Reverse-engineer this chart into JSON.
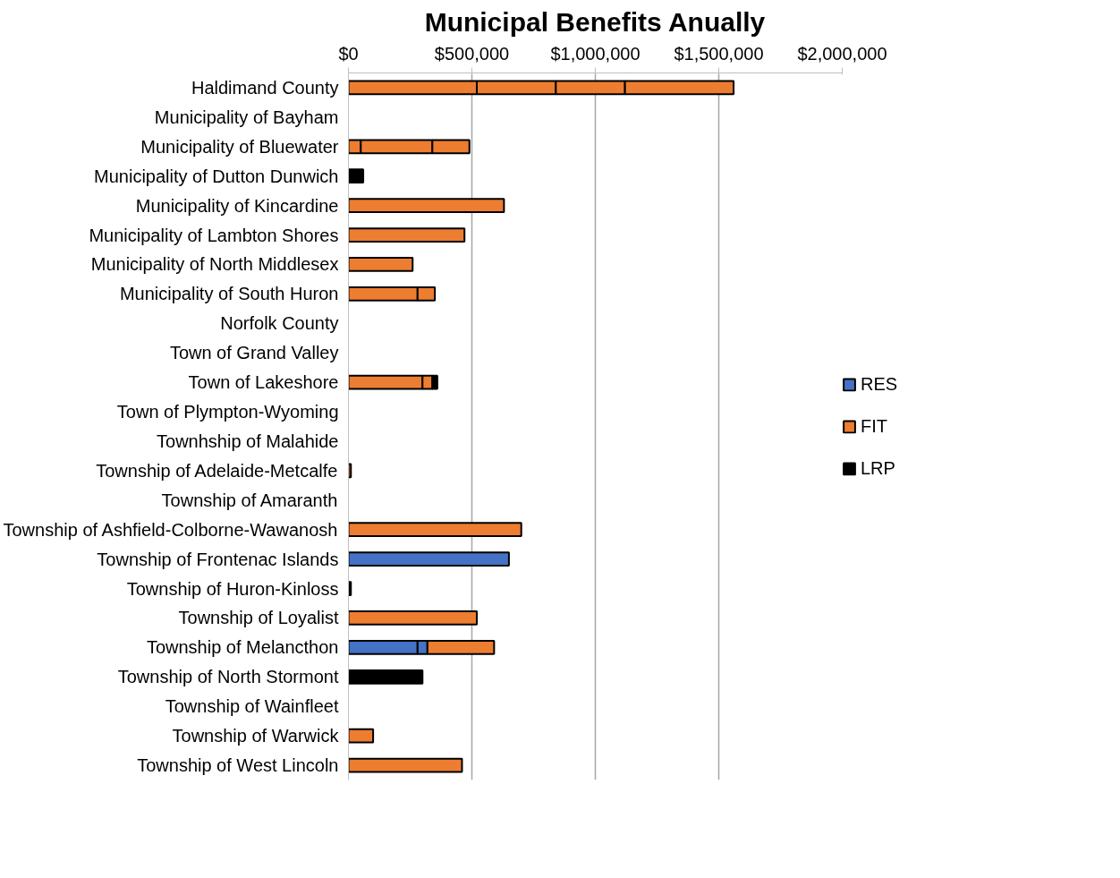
{
  "chart_data": {
    "type": "bar",
    "orientation": "horizontal",
    "stacked": true,
    "title": "Municipal Benefits Anually",
    "categories": [
      "Haldimand County",
      "Municipality of Bayham",
      "Municipality of Bluewater",
      "Municipality of Dutton Dunwich",
      "Municipality of Kincardine",
      "Municipality of Lambton Shores",
      "Municipality of North Middlesex",
      "Municipality of South Huron",
      "Norfolk County",
      "Town of Grand Valley",
      "Town of Lakeshore",
      "Town of Plympton-Wyoming",
      "Townhship of Malahide",
      "Township of Adelaide-Metcalfe",
      "Township of Amaranth",
      "Township of Ashfield-Colborne-Wawanosh",
      "Township of Frontenac Islands",
      "Township of Huron-Kinloss",
      "Township of Loyalist",
      "Township of Melancthon",
      "Township of North Stormont",
      "Township of Wainfleet",
      "Township of Warwick",
      "Township of West Lincoln"
    ],
    "series": [
      {
        "name": "RES",
        "color": "#4472c4",
        "values": [
          null,
          null,
          null,
          null,
          null,
          null,
          null,
          null,
          null,
          null,
          null,
          null,
          null,
          null,
          null,
          null,
          650000,
          null,
          null,
          280000,
          null,
          null,
          null,
          null
        ]
      },
      {
        "color": "#4472c4",
        "values": [
          null,
          null,
          null,
          null,
          null,
          null,
          null,
          null,
          null,
          null,
          null,
          null,
          null,
          null,
          null,
          null,
          null,
          null,
          null,
          40000,
          null,
          null,
          null,
          null
        ]
      },
      {
        "name": "FIT",
        "color": "#ed7d31",
        "values": [
          520000,
          null,
          50000,
          null,
          630000,
          470000,
          260000,
          280000,
          null,
          null,
          300000,
          null,
          null,
          10000,
          null,
          700000,
          null,
          null,
          520000,
          270000,
          null,
          null,
          100000,
          460000
        ]
      },
      {
        "color": "#ed7d31",
        "values": [
          320000,
          null,
          290000,
          null,
          null,
          null,
          null,
          70000,
          null,
          null,
          40000,
          null,
          null,
          null,
          null,
          null,
          null,
          null,
          null,
          null,
          null,
          null,
          null,
          null
        ]
      },
      {
        "color": "#ed7d31",
        "values": [
          280000,
          null,
          150000,
          null,
          null,
          null,
          null,
          null,
          null,
          null,
          null,
          null,
          null,
          null,
          null,
          null,
          null,
          null,
          null,
          null,
          null,
          null,
          null,
          null
        ]
      },
      {
        "color": "#ed7d31",
        "values": [
          440000,
          null,
          null,
          null,
          null,
          null,
          null,
          null,
          null,
          null,
          null,
          null,
          null,
          null,
          null,
          null,
          null,
          null,
          null,
          null,
          null,
          null,
          null,
          null
        ]
      },
      {
        "name": "LRP",
        "color": "#000000",
        "values": [
          null,
          null,
          null,
          60000,
          null,
          null,
          null,
          null,
          null,
          null,
          20000,
          null,
          null,
          null,
          null,
          null,
          null,
          10000,
          null,
          null,
          300000,
          null,
          null,
          null
        ]
      }
    ],
    "xlim": [
      0,
      2000000
    ],
    "xticks": [
      {
        "value": 0,
        "label": "$0"
      },
      {
        "value": 500000,
        "label": "$500,000"
      },
      {
        "value": 1000000,
        "label": "$1,000,000"
      },
      {
        "value": 1500000,
        "label": "$1,500,000"
      },
      {
        "value": 2000000,
        "label": "$2,000,000"
      }
    ],
    "grid": "x",
    "legend": "right"
  }
}
